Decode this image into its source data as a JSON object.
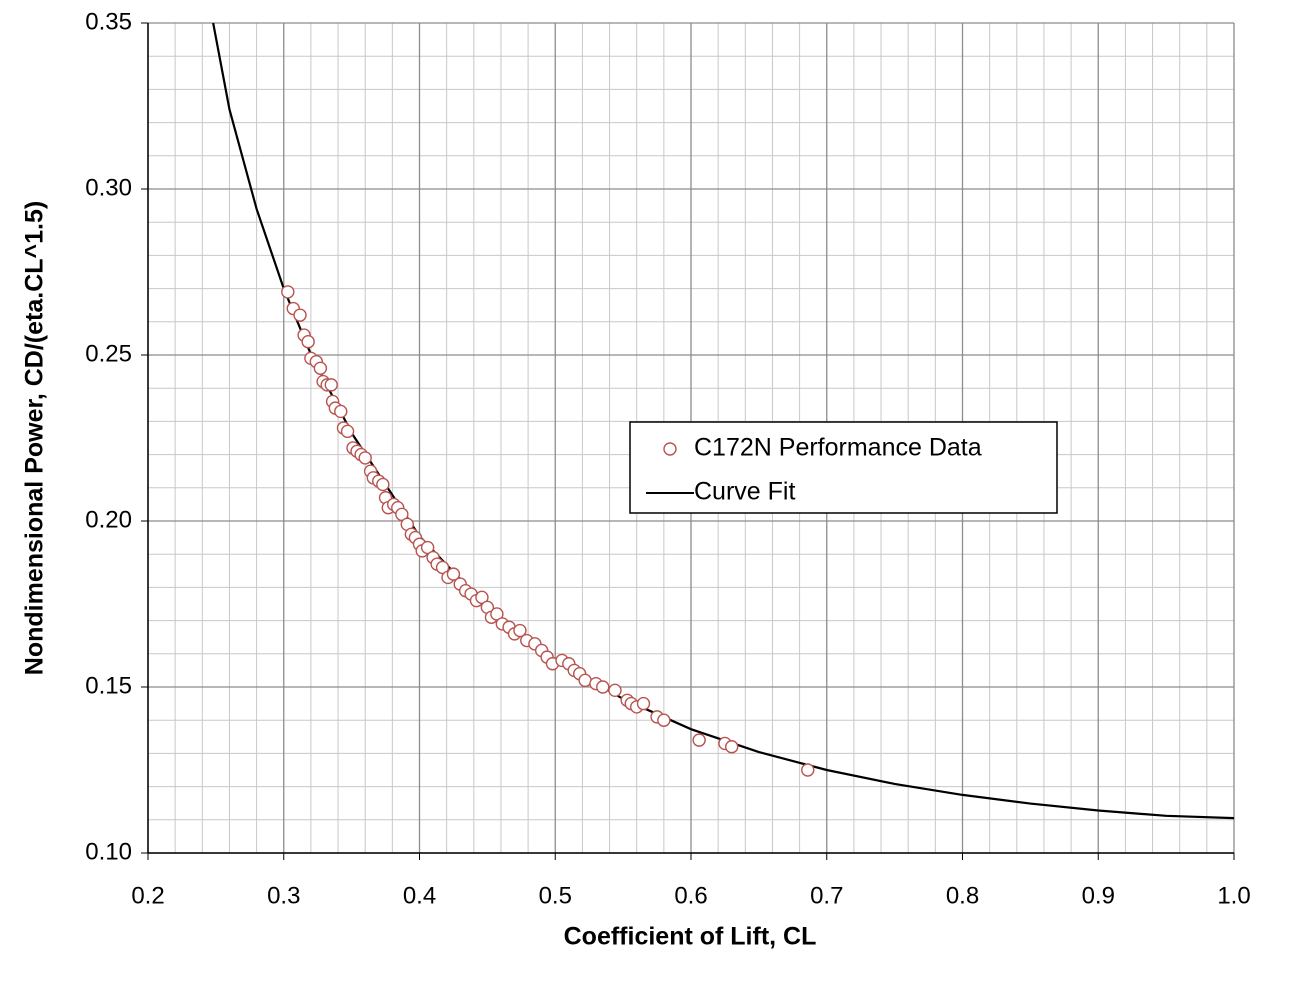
{
  "chart_data": {
    "type": "scatter",
    "x_label": "Coefficient of Lift, CL",
    "y_label": "Nondimensional Power, CD/(eta.CL^1.5)",
    "xlim": [
      0.2,
      1.0
    ],
    "ylim": [
      0.1,
      0.35
    ],
    "xticks": [
      0.2,
      0.3,
      0.4,
      0.5,
      0.6,
      0.7,
      0.8,
      0.9,
      {
        "value": 1.0,
        "label": "1.0"
      }
    ],
    "yticks": [
      {
        "value": 0.1,
        "label": "0.10"
      },
      0.15,
      {
        "value": 0.2,
        "label": "0.20"
      },
      0.25,
      {
        "value": 0.3,
        "label": "0.30"
      },
      0.35
    ],
    "grid": true,
    "minor_divisions": 5,
    "legend": "right",
    "series": [
      {
        "name": "C172N Performance Data",
        "type": "scatter",
        "color": "#b85450",
        "x": [
          0.303,
          0.307,
          0.312,
          0.315,
          0.318,
          0.32,
          0.324,
          0.327,
          0.329,
          0.332,
          0.335,
          0.336,
          0.338,
          0.342,
          0.344,
          0.347,
          0.351,
          0.354,
          0.357,
          0.36,
          0.364,
          0.366,
          0.37,
          0.373,
          0.375,
          0.377,
          0.381,
          0.384,
          0.387,
          0.391,
          0.394,
          0.397,
          0.4,
          0.402,
          0.406,
          0.41,
          0.413,
          0.417,
          0.421,
          0.425,
          0.43,
          0.434,
          0.438,
          0.442,
          0.446,
          0.45,
          0.453,
          0.457,
          0.461,
          0.466,
          0.47,
          0.474,
          0.479,
          0.485,
          0.49,
          0.494,
          0.498,
          0.505,
          0.51,
          0.514,
          0.518,
          0.522,
          0.53,
          0.535,
          0.544,
          0.553,
          0.556,
          0.56,
          0.565,
          0.575,
          0.58,
          0.606,
          0.625,
          0.63,
          0.686
        ],
        "values": [
          0.269,
          0.264,
          0.262,
          0.256,
          0.254,
          0.249,
          0.248,
          0.246,
          0.242,
          0.241,
          0.241,
          0.236,
          0.234,
          0.233,
          0.228,
          0.227,
          0.222,
          0.221,
          0.22,
          0.219,
          0.215,
          0.213,
          0.212,
          0.211,
          0.207,
          0.204,
          0.205,
          0.204,
          0.202,
          0.199,
          0.196,
          0.195,
          0.193,
          0.191,
          0.192,
          0.189,
          0.187,
          0.186,
          0.183,
          0.184,
          0.181,
          0.179,
          0.178,
          0.176,
          0.177,
          0.174,
          0.171,
          0.172,
          0.169,
          0.168,
          0.166,
          0.167,
          0.164,
          0.163,
          0.161,
          0.159,
          0.157,
          0.158,
          0.157,
          0.155,
          0.154,
          0.152,
          0.151,
          0.15,
          0.149,
          0.146,
          0.145,
          0.144,
          0.145,
          0.141,
          0.14,
          0.134,
          0.133,
          0.132,
          0.125
        ]
      },
      {
        "name": "Curve Fit",
        "type": "line",
        "color": "#000000",
        "x": [
          0.248,
          0.26,
          0.28,
          0.3,
          0.32,
          0.35,
          0.4,
          0.45,
          0.5,
          0.55,
          0.6,
          0.65,
          0.7,
          0.75,
          0.8,
          0.85,
          0.9,
          0.95,
          1.0
        ],
        "values": [
          0.35,
          0.324,
          0.294,
          0.27,
          0.2502,
          0.2265,
          0.1954,
          0.1739,
          0.1582,
          0.1464,
          0.1373,
          0.1304,
          0.125,
          0.1208,
          0.1175,
          0.1149,
          0.1128,
          0.1112,
          0.1105
        ]
      }
    ]
  }
}
